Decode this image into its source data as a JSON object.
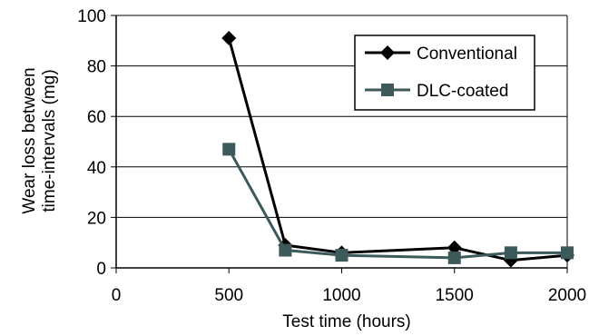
{
  "chart_data": {
    "type": "line",
    "title": "",
    "xlabel": "Test time (hours)",
    "ylabel_lines": [
      "Wear loss between",
      "time-intervals (mg)"
    ],
    "xlim": [
      0,
      2000
    ],
    "ylim": [
      0,
      100
    ],
    "x_ticks": [
      0,
      500,
      1000,
      1500,
      2000
    ],
    "y_ticks": [
      0,
      20,
      40,
      60,
      80,
      100
    ],
    "grid": "horizontal",
    "legend_position": "top-right",
    "series": [
      {
        "name": "Conventional",
        "marker": "diamond",
        "color": "#000000",
        "points": [
          {
            "x": 500,
            "y": 91
          },
          {
            "x": 750,
            "y": 9
          },
          {
            "x": 1000,
            "y": 6
          },
          {
            "x": 1500,
            "y": 8
          },
          {
            "x": 1750,
            "y": 3
          },
          {
            "x": 2000,
            "y": 5
          }
        ]
      },
      {
        "name": "DLC-coated",
        "marker": "square",
        "color": "#3c5a5a",
        "points": [
          {
            "x": 500,
            "y": 47
          },
          {
            "x": 750,
            "y": 7
          },
          {
            "x": 1000,
            "y": 5
          },
          {
            "x": 1500,
            "y": 4
          },
          {
            "x": 1750,
            "y": 6
          },
          {
            "x": 2000,
            "y": 6
          }
        ]
      }
    ]
  }
}
